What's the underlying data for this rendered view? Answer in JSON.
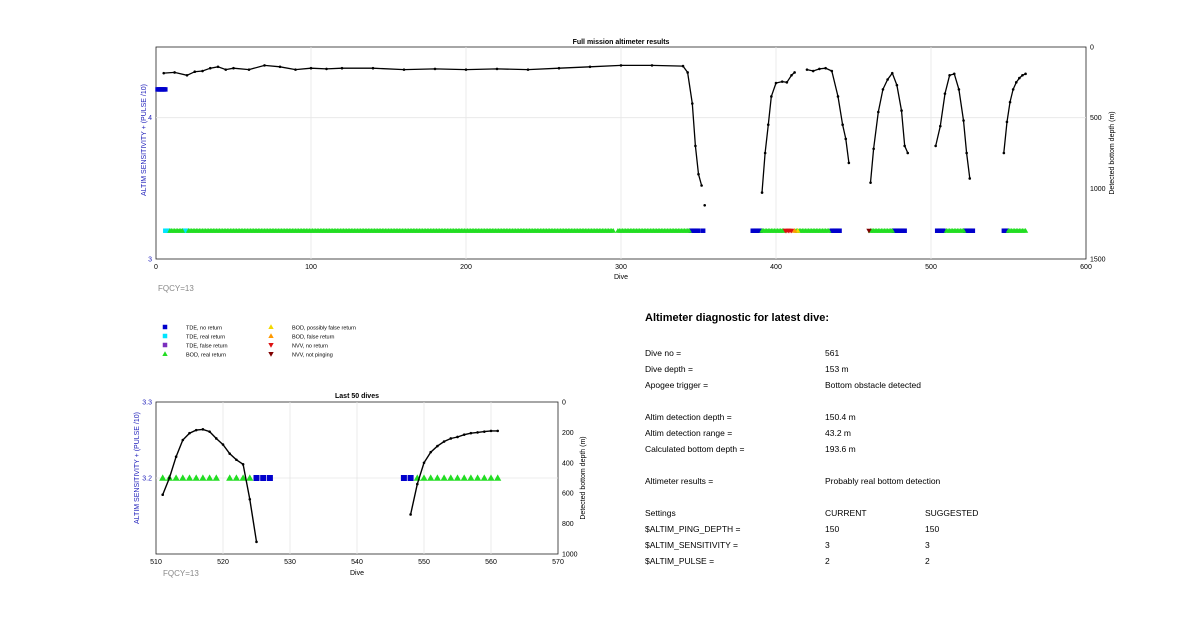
{
  "top_chart": {
    "title": "Full mission altimeter results",
    "xlabel": "Dive",
    "ylabel_left": "ALTIM SENSITIVITY + (PULSE /10)",
    "ylabel_right": "Detected bottom depth (m)",
    "x_ticks": [
      "0",
      "100",
      "200",
      "300",
      "400",
      "500",
      "600"
    ],
    "y_left_ticks": [
      "3",
      "4"
    ],
    "y_right_ticks": [
      "0",
      "500",
      "1000",
      "1500"
    ],
    "fqcy": "FQCY=13"
  },
  "bottom_chart": {
    "title": "Last 50 dives",
    "xlabel": "Dive",
    "ylabel_left": "ALTIM SENSITIVITY + (PULSE /10)",
    "ylabel_right": "Detected bottom depth (m)",
    "x_ticks": [
      "510",
      "520",
      "530",
      "540",
      "550",
      "560",
      "570"
    ],
    "y_left_ticks": [
      "3.2",
      "3.3"
    ],
    "y_right_ticks": [
      "0",
      "200",
      "400",
      "600",
      "800",
      "1000"
    ],
    "fqcy": "FQCY=13"
  },
  "legend": [
    {
      "label": "TDE, no return",
      "marker": "square",
      "color": "#0000cc"
    },
    {
      "label": "TDE, real return",
      "marker": "square",
      "color": "#00e5ff"
    },
    {
      "label": "TDE, false return",
      "marker": "square",
      "color": "#7b2fbe"
    },
    {
      "label": "BOD, real return",
      "marker": "triangle-up",
      "color": "#22dd22"
    },
    {
      "label": "BOD, possibly false return",
      "marker": "triangle-up",
      "color": "#f2d800"
    },
    {
      "label": "BOD, false return",
      "marker": "triangle-up",
      "color": "#ff9900"
    },
    {
      "label": "NVV, no return",
      "marker": "triangle-down",
      "color": "#dd1111"
    },
    {
      "label": "NVV, not pinging",
      "marker": "triangle-down",
      "color": "#800000"
    }
  ],
  "diagnostic": {
    "title": "Altimeter diagnostic for latest dive:",
    "rows": [
      {
        "label": "Dive no =",
        "value": "561"
      },
      {
        "label": "Dive depth =",
        "value": "153 m"
      },
      {
        "label": "Apogee trigger =",
        "value": "Bottom obstacle detected"
      },
      {
        "label": "Altim detection depth =",
        "value": "150.4 m"
      },
      {
        "label": "Altim detection range =",
        "value": "43.2 m"
      },
      {
        "label": "Calculated bottom depth =",
        "value": "193.6 m"
      },
      {
        "label": "Altimeter results =",
        "value": "Probably real bottom detection"
      }
    ],
    "settings_header": {
      "label": "Settings",
      "current": "CURRENT",
      "suggested": "SUGGESTED"
    },
    "settings": [
      {
        "label": "$ALTIM_PING_DEPTH =",
        "current": "150",
        "suggested": "150"
      },
      {
        "label": "$ALTIM_SENSITIVITY =",
        "current": "3",
        "suggested": "3"
      },
      {
        "label": "$ALTIM_PULSE =",
        "current": "2",
        "suggested": "2"
      }
    ]
  },
  "chart_data": [
    {
      "type": "scatter",
      "title": "Full mission altimeter results",
      "xlabel": "Dive",
      "ylabel": "ALTIM SENSITIVITY + (PULSE /10)",
      "ylabel_right": "Detected bottom depth (m)",
      "xlim": [
        0,
        600
      ],
      "ylim": [
        3,
        4.5
      ],
      "ylim_right": [
        1500,
        0
      ],
      "grid": true,
      "series": [
        {
          "marker": "square",
          "color": "#0000cc",
          "y": 4.2,
          "x": [
            1,
            2,
            3,
            4,
            5,
            6
          ],
          "yaxis": "left"
        },
        {
          "marker": "square",
          "color": "#0000cc",
          "y": 3.2,
          "x": [
            345,
            346,
            347,
            348,
            349,
            350,
            353,
            385,
            386,
            387,
            388,
            389,
            390,
            436,
            437,
            438,
            439,
            440,
            441,
            476,
            477,
            478,
            479,
            480,
            481,
            482,
            483,
            504,
            505,
            506,
            507,
            508,
            522,
            523,
            524,
            525,
            526,
            527,
            547,
            548,
            549
          ],
          "yaxis": "left"
        },
        {
          "marker": "square",
          "color": "#00e5ff",
          "y": 3.2,
          "x": [
            6,
            7,
            8,
            18,
            19,
            20
          ],
          "yaxis": "left"
        },
        {
          "marker": "triangle-up",
          "color": "#22dd22",
          "y": 3.2,
          "x_ranges": [
            [
              9,
              17
            ],
            [
              21,
              295
            ],
            [
              298,
              344
            ],
            [
              391,
              405
            ],
            [
              413,
              434
            ],
            [
              461,
              475
            ],
            [
              510,
              521
            ],
            [
              550,
              561
            ]
          ],
          "yaxis": "left"
        },
        {
          "marker": "triangle-up",
          "color": "#f2d800",
          "y": 3.2,
          "x": [
            414
          ],
          "yaxis": "left"
        },
        {
          "marker": "triangle-up",
          "color": "#ff9900",
          "y": 3.2,
          "x": [
            412
          ],
          "yaxis": "left"
        },
        {
          "marker": "triangle-down",
          "color": "#dd1111",
          "y": 3.2,
          "x": [
            406,
            407,
            408,
            409,
            410
          ],
          "yaxis": "left"
        },
        {
          "marker": "triangle-down",
          "color": "#800000",
          "y": 3.2,
          "x": [
            460
          ],
          "yaxis": "left"
        },
        {
          "type": "line",
          "marker": "dot",
          "color": "#000000",
          "yaxis": "right",
          "segments": [
            [
              [
                5,
                185
              ],
              [
                12,
                180
              ],
              [
                20,
                200
              ],
              [
                25,
                175
              ],
              [
                30,
                170
              ],
              [
                35,
                150
              ],
              [
                40,
                140
              ],
              [
                45,
                160
              ],
              [
                50,
                150
              ],
              [
                60,
                160
              ],
              [
                70,
                130
              ],
              [
                80,
                140
              ],
              [
                90,
                160
              ],
              [
                100,
                150
              ],
              [
                110,
                155
              ],
              [
                120,
                150
              ],
              [
                140,
                150
              ],
              [
                160,
                160
              ],
              [
                180,
                155
              ],
              [
                200,
                160
              ],
              [
                220,
                155
              ],
              [
                240,
                160
              ],
              [
                260,
                150
              ],
              [
                280,
                140
              ],
              [
                300,
                130
              ],
              [
                320,
                130
              ],
              [
                340,
                135
              ],
              [
                343,
                180
              ],
              [
                346,
                400
              ],
              [
                348,
                700
              ],
              [
                350,
                900
              ],
              [
                352,
                980
              ]
            ],
            [
              [
                354,
                1120
              ]
            ],
            [
              [
                391,
                1030
              ],
              [
                393,
                750
              ],
              [
                395,
                550
              ],
              [
                397,
                350
              ],
              [
                400,
                255
              ],
              [
                404,
                245
              ],
              [
                407,
                250
              ],
              [
                410,
                200
              ],
              [
                412,
                180
              ]
            ],
            [
              [
                420,
                160
              ],
              [
                424,
                170
              ],
              [
                428,
                155
              ],
              [
                432,
                150
              ],
              [
                436,
                170
              ],
              [
                440,
                350
              ],
              [
                443,
                550
              ],
              [
                445,
                650
              ],
              [
                447,
                820
              ]
            ],
            [
              [
                461,
                960
              ],
              [
                463,
                720
              ],
              [
                466,
                460
              ],
              [
                469,
                300
              ],
              [
                472,
                230
              ],
              [
                475,
                185
              ],
              [
                478,
                270
              ],
              [
                481,
                450
              ],
              [
                483,
                700
              ],
              [
                485,
                750
              ]
            ],
            [
              [
                503,
                700
              ],
              [
                506,
                560
              ],
              [
                509,
                330
              ],
              [
                512,
                200
              ],
              [
                515,
                190
              ],
              [
                518,
                300
              ],
              [
                521,
                520
              ],
              [
                523,
                750
              ],
              [
                525,
                930
              ]
            ],
            [
              [
                547,
                750
              ],
              [
                549,
                530
              ],
              [
                551,
                390
              ],
              [
                553,
                300
              ],
              [
                555,
                250
              ],
              [
                557,
                220
              ],
              [
                559,
                200
              ],
              [
                561,
                190
              ]
            ]
          ]
        }
      ]
    },
    {
      "type": "scatter",
      "title": "Last 50 dives",
      "xlabel": "Dive",
      "ylabel": "ALTIM SENSITIVITY + (PULSE /10)",
      "ylabel_right": "Detected bottom depth (m)",
      "xlim": [
        510,
        570
      ],
      "ylim": [
        3.1,
        3.3
      ],
      "ylim_right": [
        1000,
        0
      ],
      "grid": true,
      "series": [
        {
          "marker": "triangle-up",
          "color": "#22dd22",
          "y": 3.2,
          "x": [
            511,
            512,
            513,
            514,
            515,
            516,
            517,
            518,
            519,
            521,
            522,
            523,
            524,
            549,
            550,
            551,
            552,
            553,
            554,
            555,
            556,
            557,
            558,
            559,
            560,
            561
          ],
          "yaxis": "left"
        },
        {
          "marker": "square",
          "color": "#0000cc",
          "y": 3.2,
          "x": [
            525,
            526,
            527,
            547,
            548
          ],
          "yaxis": "left"
        },
        {
          "type": "line",
          "marker": "dot",
          "color": "#000000",
          "yaxis": "right",
          "segments": [
            [
              [
                511,
                610
              ],
              [
                512,
                500
              ],
              [
                513,
                360
              ],
              [
                514,
                250
              ],
              [
                515,
                205
              ],
              [
                516,
                185
              ],
              [
                517,
                180
              ],
              [
                518,
                195
              ],
              [
                519,
                240
              ],
              [
                520,
                280
              ],
              [
                521,
                340
              ],
              [
                522,
                380
              ],
              [
                523,
                410
              ],
              [
                524,
                640
              ],
              [
                525,
                920
              ]
            ],
            [
              [
                548,
                740
              ],
              [
                549,
                540
              ],
              [
                550,
                400
              ],
              [
                551,
                330
              ],
              [
                552,
                290
              ],
              [
                553,
                260
              ],
              [
                554,
                240
              ],
              [
                555,
                230
              ],
              [
                556,
                215
              ],
              [
                557,
                205
              ],
              [
                558,
                200
              ],
              [
                559,
                195
              ],
              [
                560,
                190
              ],
              [
                561,
                190
              ]
            ]
          ]
        }
      ]
    }
  ]
}
